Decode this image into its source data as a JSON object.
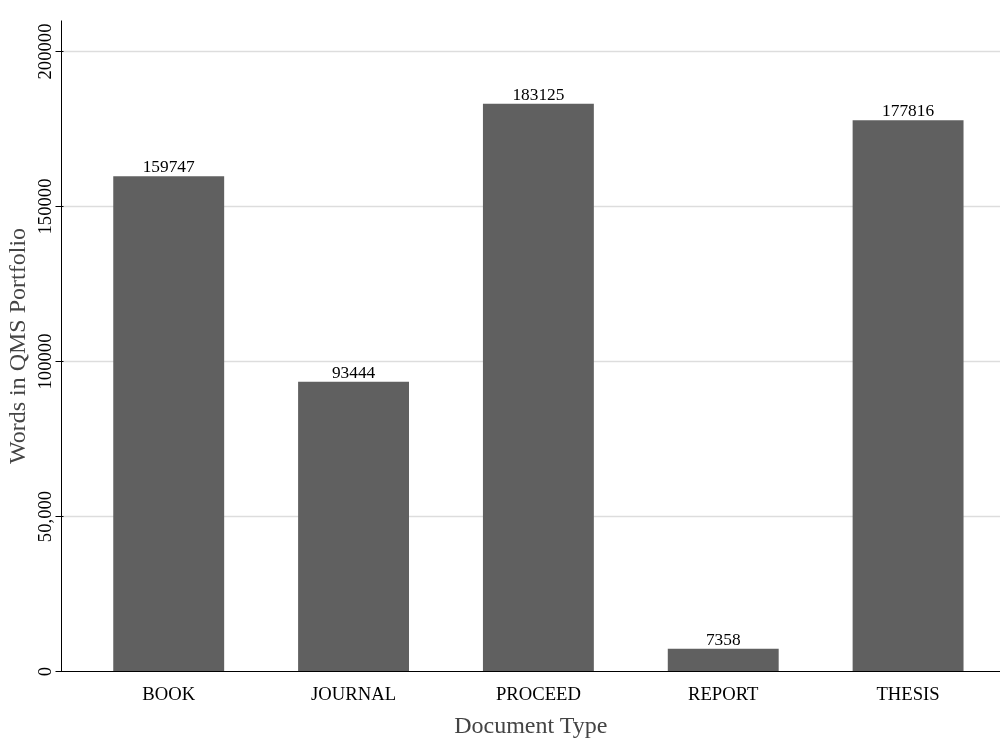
{
  "chart_data": {
    "type": "bar",
    "xlabel": "Document Type",
    "ylabel": "Words in QMS Portfolio",
    "categories": [
      "BOOK",
      "JOURNAL",
      "PROCEED",
      "REPORT",
      "THESIS"
    ],
    "values": [
      159747,
      93444,
      183125,
      7358,
      177816
    ],
    "color": "#606060",
    "ylim": [
      0,
      210000
    ],
    "yticks": [
      0,
      {
        "value": 50000,
        "label": "50,000"
      },
      100000,
      150000,
      200000
    ],
    "grid": "y",
    "data_labels": true
  }
}
